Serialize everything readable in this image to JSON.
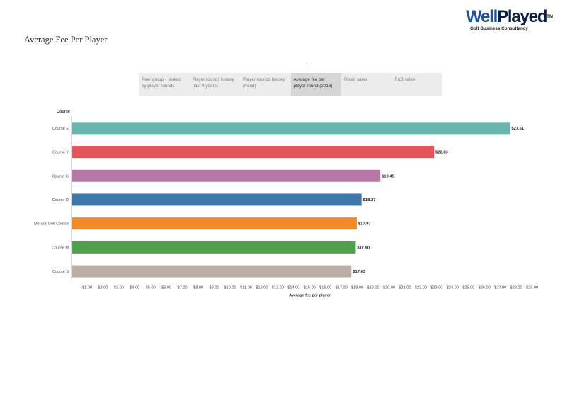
{
  "page": {
    "title": "Average Fee Per Player"
  },
  "logo": {
    "brand_light": "Well",
    "brand_dark": "Played",
    "trademark": "TM",
    "tagline": "Golf Business Consultancy"
  },
  "tabs": [
    {
      "label": "Peer group - ranked by player rounds",
      "active": false
    },
    {
      "label": "Player rounds history (last 4 years)",
      "active": false
    },
    {
      "label": "Player rounds history (trend)",
      "active": false
    },
    {
      "label": "Average fee per player round (2016)",
      "active": true
    },
    {
      "label": "Retail sales",
      "active": false
    },
    {
      "label": "F&B sales",
      "active": false
    }
  ],
  "chart_data": {
    "type": "bar",
    "orientation": "horizontal",
    "row_header": "Course",
    "xlabel": "Average fee per player",
    "categories": [
      "Course E",
      "Course Y",
      "Course G",
      "Course D",
      "Morack Golf Course",
      "Course M",
      "Course S"
    ],
    "values": [
      27.61,
      22.83,
      19.45,
      18.27,
      17.97,
      17.9,
      17.63
    ],
    "value_labels": [
      "$27.61",
      "$22.83",
      "$19.45",
      "$18.27",
      "$17.97",
      "$17.90",
      "$17.63"
    ],
    "colors": [
      "#6bb5b0",
      "#e5535b",
      "#b678a5",
      "#3e78aa",
      "#f28a25",
      "#4ea04b",
      "#bbaea6"
    ],
    "xlim": [
      0,
      29
    ],
    "xticks": [
      1,
      2,
      3,
      4,
      5,
      6,
      7,
      8,
      9,
      10,
      11,
      12,
      13,
      14,
      15,
      16,
      17,
      18,
      19,
      20,
      21,
      22,
      23,
      24,
      25,
      26,
      27,
      28,
      29
    ],
    "xtick_labels": [
      "$1.00",
      "$2.00",
      "$3.00",
      "$4.00",
      "$5.00",
      "$6.00",
      "$7.00",
      "$8.00",
      "$9.00",
      "$10.00",
      "$11.00",
      "$12.00",
      "$13.00",
      "$14.00",
      "$15.00",
      "$16.00",
      "$17.00",
      "$18.00",
      "$19.00",
      "$20.00",
      "$21.00",
      "$22.00",
      "$23.00",
      "$24.00",
      "$25.00",
      "$26.00",
      "$27.00",
      "$28.00",
      "$29.00"
    ],
    "grid": false
  }
}
